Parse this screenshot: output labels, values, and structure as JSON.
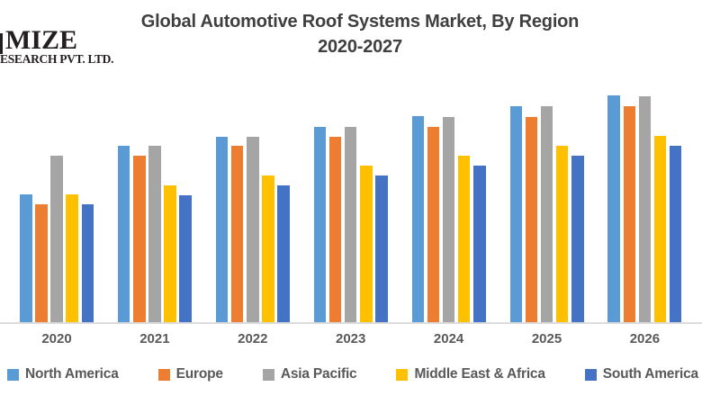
{
  "page": {
    "background": "#FFFFFF"
  },
  "logo": {
    "line1": "MIZE",
    "line2": "ESEARCH PVT. LTD.",
    "color": "#231F20"
  },
  "header": {
    "title_line1": "Global Automotive Roof Systems Market, By Region",
    "title_line2": "2020-2027",
    "color": "#3F3F3F"
  },
  "chart_data": {
    "type": "bar",
    "title": "Global Automotive Roof Systems Market, By Region 2020-2027",
    "categories": [
      "2020",
      "2021",
      "2022",
      "2023",
      "2024",
      "2025",
      "2026"
    ],
    "series": [
      {
        "name": "North America",
        "color": "#5B9BD5",
        "values": [
          142,
          196,
          206,
          217,
          229,
          240,
          252
        ]
      },
      {
        "name": "Europe",
        "color": "#ED7D31",
        "values": [
          131,
          185,
          196,
          206,
          217,
          228,
          240
        ]
      },
      {
        "name": "Asia Pacific",
        "color": "#A5A5A5",
        "values": [
          185,
          196,
          206,
          217,
          228,
          240,
          251
        ]
      },
      {
        "name": "Middle East & Africa",
        "color": "#FFC000",
        "values": [
          142,
          152,
          163,
          174,
          185,
          196,
          207
        ]
      },
      {
        "name": "South America",
        "color": "#4472C4",
        "values": [
          131,
          141,
          152,
          163,
          174,
          185,
          196
        ]
      }
    ],
    "xlabel": "",
    "ylabel": "",
    "ylim": [
      0,
      260
    ],
    "grid": false,
    "y_axis_visible": false,
    "legend_position": "bottom",
    "axis_line_color": "#DCDCDC",
    "label_color": "#595959"
  }
}
